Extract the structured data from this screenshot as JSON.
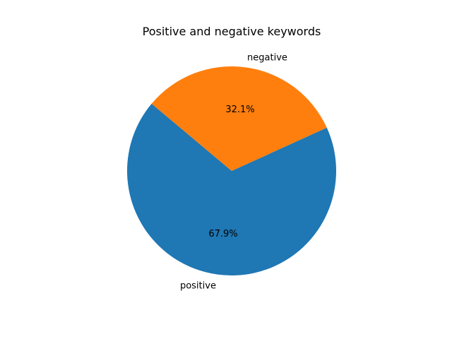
{
  "chart_data": {
    "type": "pie",
    "title": "Positive and negative keywords",
    "slices": [
      {
        "label": "positive",
        "value": 67.9,
        "pct_label": "67.9%",
        "color": "#1f77b4"
      },
      {
        "label": "negative",
        "value": 32.1,
        "pct_label": "32.1%",
        "color": "#ff7f0e"
      }
    ],
    "start_angle_deg": 140,
    "direction": "counterclockwise"
  }
}
